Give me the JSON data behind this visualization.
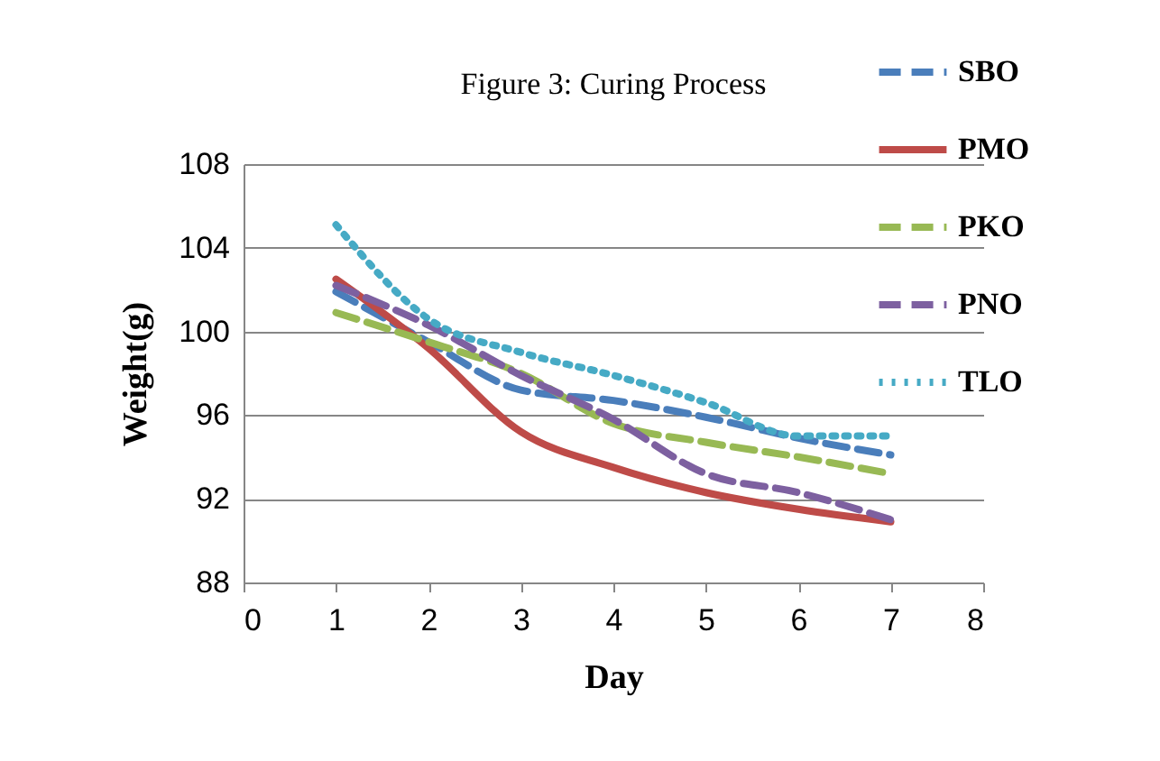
{
  "chart_data": {
    "type": "line",
    "title": "Figure 3: Curing Process",
    "xlabel": "Day",
    "ylabel": "Weight(g)",
    "x": [
      1,
      2,
      3,
      4,
      5,
      6,
      7
    ],
    "series": [
      {
        "name": "SBO",
        "color": "#4a7ebb",
        "line_style": "dashed",
        "values": [
          101.9,
          99.5,
          97.2,
          96.7,
          95.9,
          94.9,
          94.1
        ]
      },
      {
        "name": "PMO",
        "color": "#be4b48",
        "line_style": "solid",
        "values": [
          102.5,
          99.2,
          95.2,
          93.5,
          92.3,
          91.5,
          90.9
        ]
      },
      {
        "name": "PKO",
        "color": "#98b954",
        "line_style": "dashed",
        "values": [
          100.9,
          99.5,
          98.0,
          95.6,
          94.7,
          94.0,
          93.2
        ]
      },
      {
        "name": "PNO",
        "color": "#7d60a0",
        "line_style": "dashed",
        "values": [
          102.2,
          100.3,
          97.9,
          95.8,
          93.2,
          92.3,
          91.0
        ]
      },
      {
        "name": "TLO",
        "color": "#46aac5",
        "line_style": "dotted",
        "values": [
          105.1,
          100.6,
          99.0,
          97.9,
          96.6,
          95.0,
          95.0
        ]
      }
    ],
    "xlim": [
      0,
      8
    ],
    "xticks": [
      0,
      1,
      2,
      3,
      4,
      5,
      6,
      7,
      8
    ],
    "ylim": [
      88,
      108
    ],
    "yticks": [
      88,
      92,
      96,
      100,
      104,
      108
    ],
    "grid": "y",
    "legend": "top right",
    "marker": "none"
  }
}
